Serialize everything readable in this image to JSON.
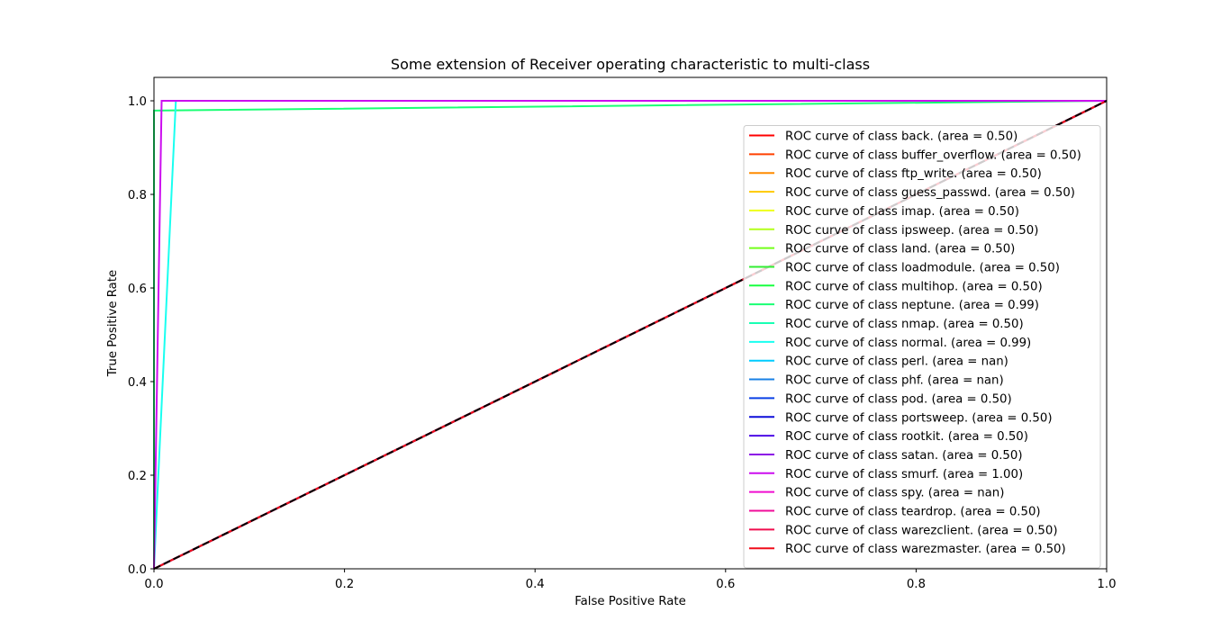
{
  "chart_data": {
    "type": "line",
    "title": "Some extension of Receiver operating characteristic to multi-class",
    "xlabel": "False Positive Rate",
    "ylabel": "True Positive Rate",
    "xlim": [
      0.0,
      1.0
    ],
    "ylim": [
      0.0,
      1.05
    ],
    "x_ticks": [
      "0.0",
      "0.2",
      "0.4",
      "0.6",
      "0.8",
      "1.0"
    ],
    "y_ticks": [
      "0.0",
      "0.2",
      "0.4",
      "0.6",
      "0.8",
      "1.0"
    ],
    "grid": false,
    "legend_placement": "lower-right",
    "series": [
      {
        "name": "ROC curve of class back. (area = 0.50)",
        "color": "#ff0000",
        "x": [
          0,
          1
        ],
        "y": [
          0,
          1
        ]
      },
      {
        "name": "ROC curve of class buffer_overflow. (area = 0.50)",
        "color": "#ff4000",
        "x": [
          0,
          1
        ],
        "y": [
          0,
          1
        ]
      },
      {
        "name": "ROC curve of class ftp_write. (area = 0.50)",
        "color": "#ff8c00",
        "x": [
          0,
          1
        ],
        "y": [
          0,
          1
        ]
      },
      {
        "name": "ROC curve of class guess_passwd. (area = 0.50)",
        "color": "#ffcc00",
        "x": [
          0,
          1
        ],
        "y": [
          0,
          1
        ]
      },
      {
        "name": "ROC curve of class imap. (area = 0.50)",
        "color": "#eeff1a",
        "x": [
          0,
          1
        ],
        "y": [
          0,
          1
        ]
      },
      {
        "name": "ROC curve of class ipsweep. (area = 0.50)",
        "color": "#b3ff1a",
        "x": [
          0,
          1
        ],
        "y": [
          0,
          1
        ]
      },
      {
        "name": "ROC curve of class land. (area = 0.50)",
        "color": "#73ff1a",
        "x": [
          0,
          1
        ],
        "y": [
          0,
          1
        ]
      },
      {
        "name": "ROC curve of class loadmodule. (area = 0.50)",
        "color": "#33ee33",
        "x": [
          0,
          1
        ],
        "y": [
          0,
          1
        ]
      },
      {
        "name": "ROC curve of class multihop. (area = 0.50)",
        "color": "#19ff40",
        "x": [
          0,
          1
        ],
        "y": [
          0,
          1
        ]
      },
      {
        "name": "ROC curve of class neptune. (area = 0.99)",
        "color": "#19ff73",
        "x": [
          0,
          0,
          1
        ],
        "y": [
          0,
          0.979,
          1
        ]
      },
      {
        "name": "ROC curve of class nmap. (area = 0.50)",
        "color": "#19ffb3",
        "x": [
          0,
          1
        ],
        "y": [
          0,
          1
        ]
      },
      {
        "name": "ROC curve of class normal. (area = 0.99)",
        "color": "#19fff0",
        "x": [
          0,
          0.023,
          1
        ],
        "y": [
          0,
          1,
          1
        ]
      },
      {
        "name": "ROC curve of class perl. (area = nan)",
        "color": "#00ccff",
        "x": [],
        "y": []
      },
      {
        "name": "ROC curve of class phf. (area = nan)",
        "color": "#1a80e6",
        "x": [],
        "y": []
      },
      {
        "name": "ROC curve of class pod. (area = 0.50)",
        "color": "#0a40e6",
        "x": [
          0,
          1
        ],
        "y": [
          0,
          1
        ]
      },
      {
        "name": "ROC curve of class portsweep. (area = 0.50)",
        "color": "#0d0dd9",
        "x": [
          0,
          1
        ],
        "y": [
          0,
          1
        ]
      },
      {
        "name": "ROC curve of class rootkit. (area = 0.50)",
        "color": "#4d0de6",
        "x": [
          0,
          1
        ],
        "y": [
          0,
          1
        ]
      },
      {
        "name": "ROC curve of class satan. (area = 0.50)",
        "color": "#8c0de6",
        "x": [
          0,
          1
        ],
        "y": [
          0,
          1
        ]
      },
      {
        "name": "ROC curve of class smurf. (area = 1.00)",
        "color": "#cc0def",
        "x": [
          0,
          0.008,
          1
        ],
        "y": [
          0,
          1,
          1
        ]
      },
      {
        "name": "ROC curve of class spy. (area = nan)",
        "color": "#f00dd0",
        "x": [],
        "y": []
      },
      {
        "name": "ROC curve of class teardrop. (area = 0.50)",
        "color": "#f00d99",
        "x": [
          0,
          1
        ],
        "y": [
          0,
          1
        ]
      },
      {
        "name": "ROC curve of class warezclient. (area = 0.50)",
        "color": "#f00d4d",
        "x": [
          0,
          1
        ],
        "y": [
          0,
          1
        ]
      },
      {
        "name": "ROC curve of class warezmaster. (area = 0.50)",
        "color": "#f00d1a",
        "x": [
          0,
          1
        ],
        "y": [
          0,
          1
        ]
      }
    ],
    "reference_line": {
      "x": [
        0,
        1
      ],
      "y": [
        0,
        1
      ],
      "color": "#000000",
      "style": "dashed"
    }
  }
}
